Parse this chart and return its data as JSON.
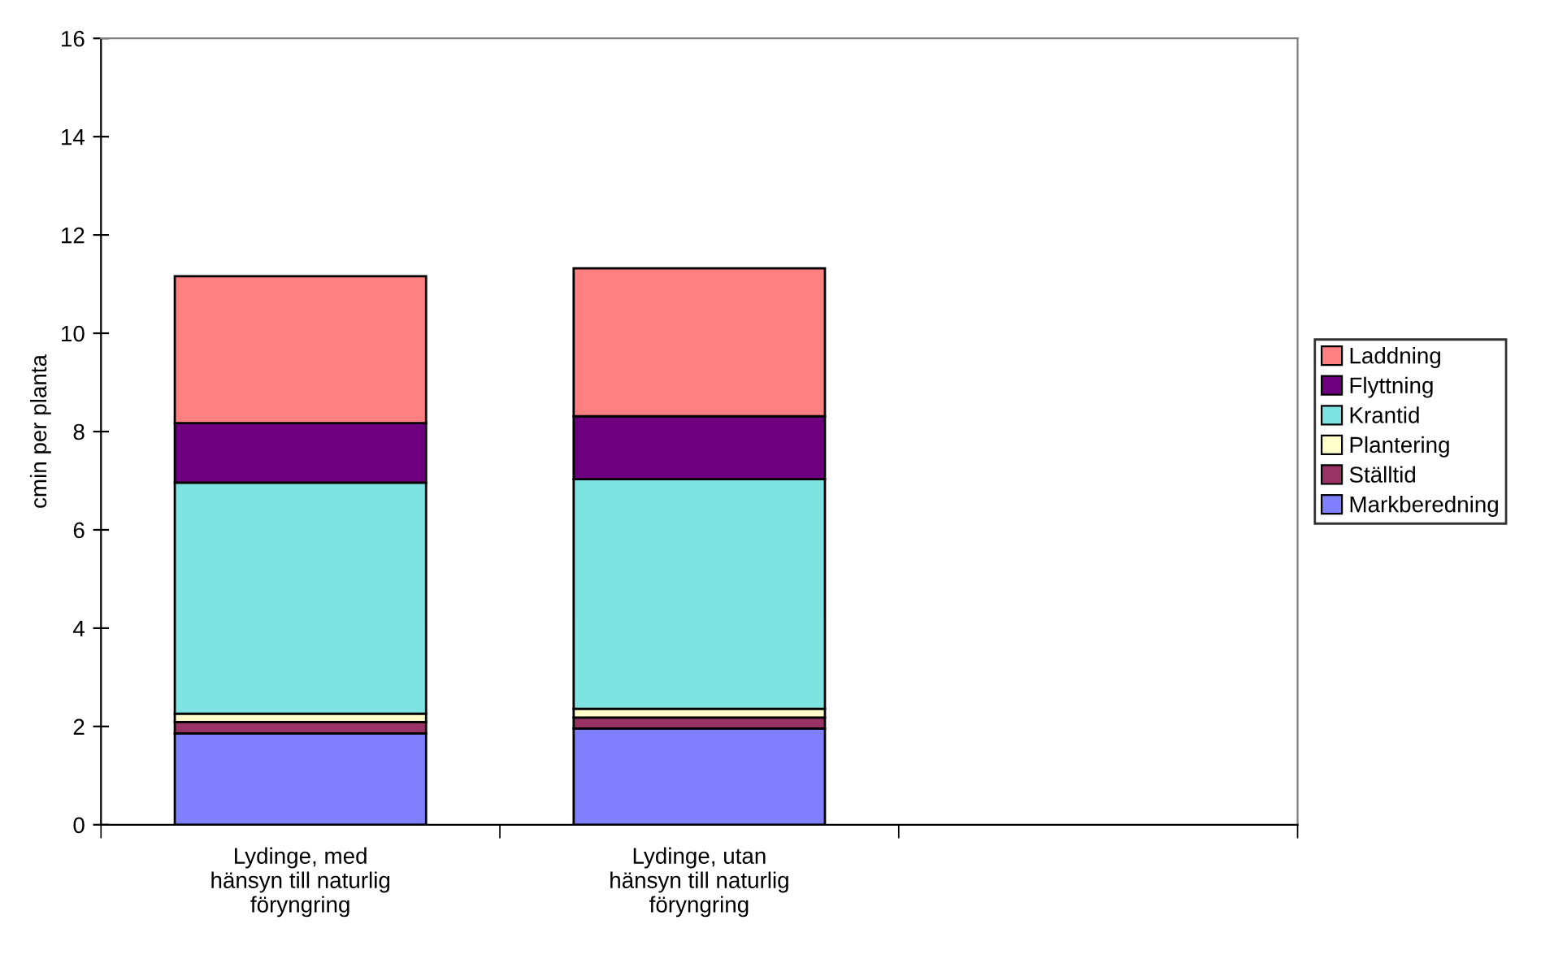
{
  "chart_data": {
    "type": "bar",
    "stacked": true,
    "ylabel": "cmin per planta",
    "categories": [
      "Lydinge, med\nhänsyn till naturlig\nföryngring",
      "Lydinge, utan\nhänsyn till naturlig\nföryngring",
      null
    ],
    "series": [
      {
        "name": "Markberedning",
        "color": "#8080ff",
        "values": [
          1.86,
          1.96,
          null
        ]
      },
      {
        "name": "Ställtid",
        "color": "#993366",
        "values": [
          0.23,
          0.22,
          null
        ]
      },
      {
        "name": "Plantering",
        "color": "#ffffcc",
        "values": [
          0.17,
          0.18,
          null
        ]
      },
      {
        "name": "Krantid",
        "color": "#7ee3e1",
        "values": [
          4.7,
          4.67,
          null
        ]
      },
      {
        "name": "Flyttning",
        "color": "#6e0080",
        "values": [
          1.21,
          1.28,
          null
        ]
      },
      {
        "name": "Laddning",
        "color": "#ff8080",
        "values": [
          2.99,
          3.01,
          null
        ]
      }
    ],
    "ylim": [
      0,
      16
    ],
    "yticks": [
      0,
      2,
      4,
      6,
      8,
      10,
      12,
      14,
      16
    ],
    "grid": false,
    "legend": "right"
  }
}
